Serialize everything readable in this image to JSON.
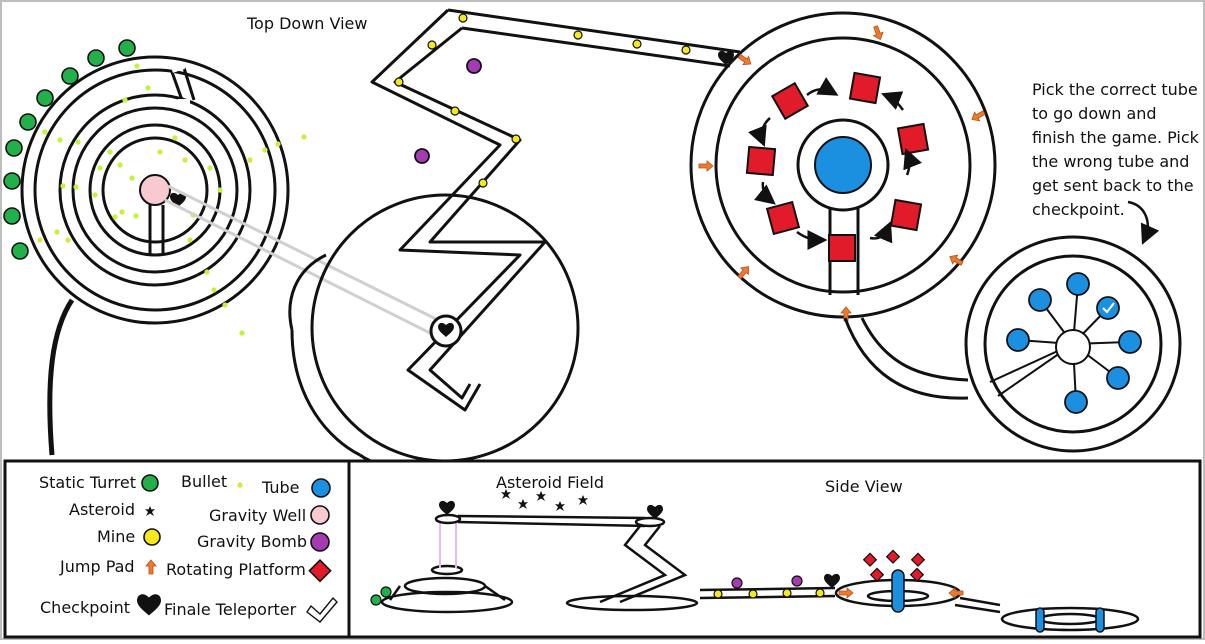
{
  "title": "Top Down View",
  "note": "Pick the correct tube to go down and finish the game. Pick the wrong tube and get sent back to the checkpoint.",
  "side_view_title": "Side View",
  "asteroid_field_label": "Asteroid Field",
  "legend": {
    "static_turret": "Static Turret",
    "bullet": "Bullet",
    "tube": "Tube",
    "asteroid": "Asteroid",
    "gravity_well": "Gravity Well",
    "mine": "Mine",
    "gravity_bomb": "Gravity Bomb",
    "jump_pad": "Jump Pad",
    "rotating_platform": "Rotating Platform",
    "checkpoint": "Checkpoint",
    "finale_teleporter": "Finale Teleporter"
  },
  "colors": {
    "turret": "#22b04a",
    "bullet": "#c5f23b",
    "tube": "#1b8fe0",
    "gravity_well": "#f8c9d0",
    "mine": "#f7e81c",
    "gravity_bomb": "#a43bb2",
    "jump_pad": "#f07a2a",
    "rotating_platform": "#e21b2a"
  }
}
